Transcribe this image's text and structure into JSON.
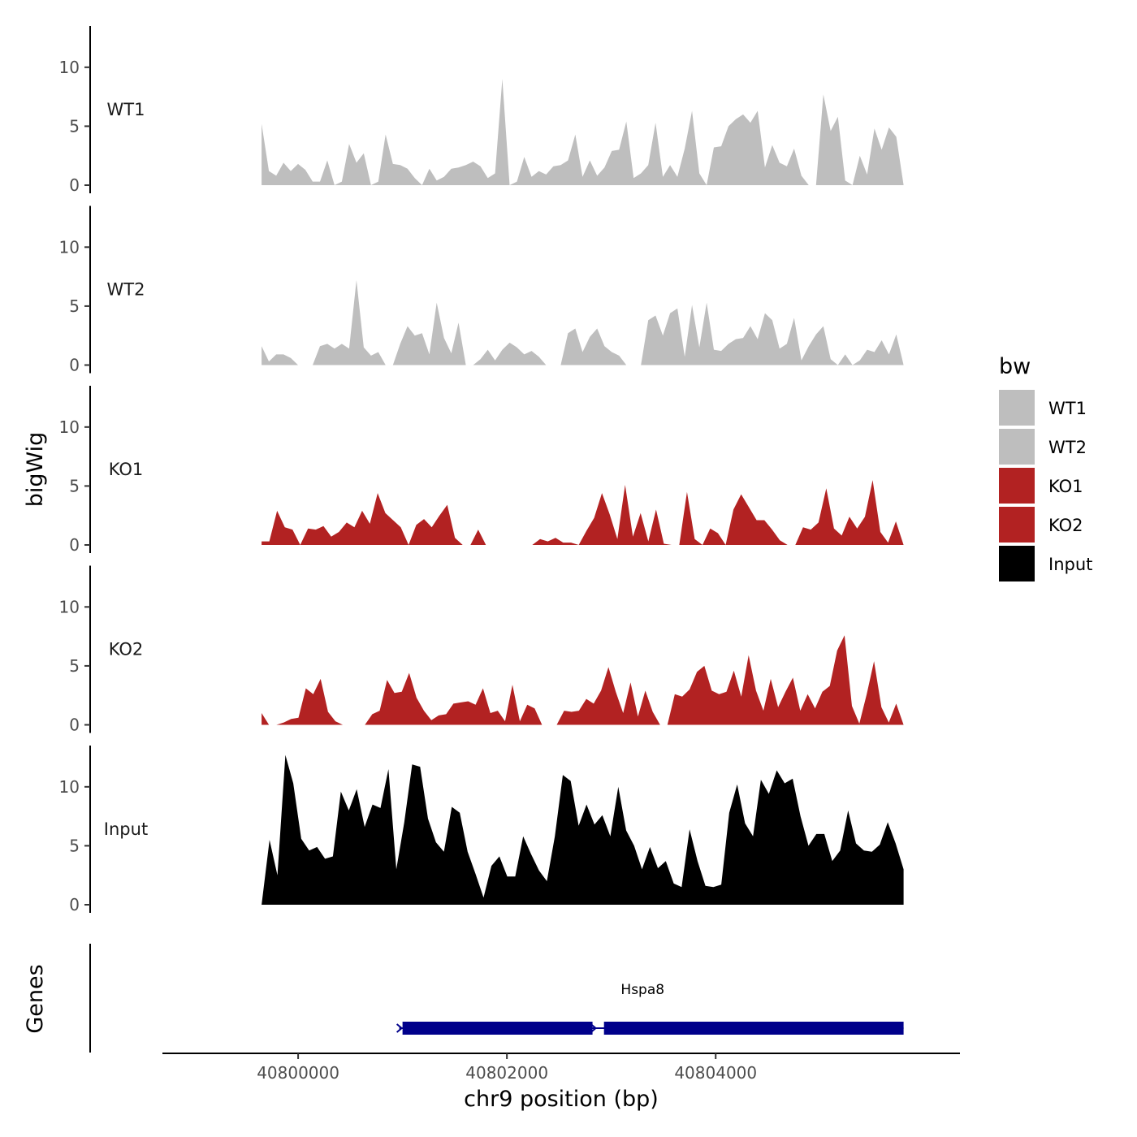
{
  "chart_data": {
    "type": "area",
    "ylabel": "bigWig",
    "genes_label": "Genes",
    "xlabel": "chr9 position (bp)",
    "x_ticks": [
      40800000,
      40802000,
      40804000
    ],
    "xlim": [
      40798700,
      40806340
    ],
    "data_x_range": [
      40799650,
      40805800
    ],
    "ylim": [
      0,
      13.5
    ],
    "y_ticks": [
      0,
      5,
      10
    ],
    "y_tick_labels": [
      "0",
      "5",
      "10"
    ],
    "legend": {
      "title": "bw",
      "entries": [
        {
          "label": "WT1",
          "color": "#bebebe"
        },
        {
          "label": "WT2",
          "color": "#bebebe"
        },
        {
          "label": "KO1",
          "color": "#b22222"
        },
        {
          "label": "KO2",
          "color": "#b22222"
        },
        {
          "label": "Input",
          "color": "#000000"
        }
      ]
    },
    "tracks": [
      {
        "name": "WT1",
        "color": "#bebebe",
        "values": [
          5.2,
          1.2,
          0.8,
          1.9,
          1.2,
          1.8,
          1.3,
          0.3,
          0.3,
          2.1,
          0,
          0.3,
          3.5,
          1.9,
          2.7,
          0,
          0.3,
          4.3,
          1.8,
          1.7,
          1.4,
          0.6,
          0,
          1.4,
          0.4,
          0.7,
          1.4,
          1.5,
          1.7,
          2.0,
          1.6,
          0.6,
          1.0,
          9.0,
          0,
          0.3,
          2.4,
          0.7,
          1.2,
          0.9,
          1.6,
          1.7,
          2.1,
          4.3,
          0.7,
          2.1,
          0.8,
          1.5,
          2.9,
          3.0,
          5.4,
          0.6,
          1.0,
          1.7,
          5.3,
          0.7,
          1.7,
          0.7,
          3.1,
          6.3,
          1.0,
          0,
          3.2,
          3.3,
          5.0,
          5.6,
          6.0,
          5.3,
          6.3,
          1.5,
          3.4,
          1.9,
          1.6,
          3.1,
          0.8,
          0,
          0,
          7.7,
          4.6,
          5.8,
          0.4,
          0,
          2.5,
          0.9,
          4.8,
          3.0,
          4.9,
          4.1,
          0
        ]
      },
      {
        "name": "WT2",
        "color": "#bebebe",
        "values": [
          1.6,
          0.3,
          0.9,
          0.9,
          0.6,
          0,
          0,
          0,
          1.6,
          1.8,
          1.4,
          1.8,
          1.4,
          7.2,
          1.5,
          0.8,
          1.1,
          0,
          0,
          1.8,
          3.3,
          2.5,
          2.7,
          0.9,
          5.3,
          2.3,
          1.0,
          3.6,
          0,
          0,
          0.5,
          1.3,
          0.4,
          1.3,
          1.9,
          1.5,
          0.9,
          1.2,
          0.7,
          0,
          0,
          0,
          2.7,
          3.1,
          1.1,
          2.4,
          3.1,
          1.6,
          1.1,
          0.8,
          0,
          0,
          0,
          3.8,
          4.2,
          2.5,
          4.4,
          4.8,
          0.7,
          5.1,
          1.5,
          5.3,
          1.3,
          1.2,
          1.8,
          2.2,
          2.3,
          3.3,
          2.2,
          4.4,
          3.8,
          1.4,
          1.8,
          4.0,
          0.4,
          1.6,
          2.6,
          3.3,
          0.5,
          0,
          0.9,
          0,
          0.4,
          1.3,
          1.1,
          2.1,
          0.9,
          2.6,
          0
        ]
      },
      {
        "name": "KO1",
        "color": "#b22222",
        "values": [
          0.3,
          0.3,
          2.9,
          1.5,
          1.3,
          0,
          1.4,
          1.3,
          1.6,
          0.7,
          1.1,
          1.9,
          1.5,
          2.9,
          1.8,
          4.4,
          2.7,
          2.1,
          1.5,
          0,
          1.7,
          2.2,
          1.5,
          2.5,
          3.4,
          0.6,
          0,
          0,
          1.3,
          0,
          0,
          0,
          0,
          0,
          0,
          0,
          0.5,
          0.3,
          0.6,
          0.2,
          0.2,
          0,
          1.2,
          2.3,
          4.4,
          2.6,
          0.5,
          5.1,
          0.7,
          2.7,
          0.3,
          3.0,
          0.1,
          0,
          0,
          4.5,
          0.5,
          0,
          1.4,
          1.0,
          0,
          3.0,
          4.3,
          3.2,
          2.1,
          2.1,
          1.3,
          0.4,
          0,
          0,
          1.5,
          1.3,
          1.9,
          4.8,
          1.4,
          0.8,
          2.4,
          1.4,
          2.4,
          5.5,
          1.1,
          0.2,
          2.0,
          0
        ]
      },
      {
        "name": "KO2",
        "color": "#b22222",
        "values": [
          1.0,
          0,
          0,
          0.2,
          0.5,
          0.6,
          3.1,
          2.6,
          3.9,
          1.1,
          0.3,
          0,
          0,
          0,
          0,
          0.9,
          1.2,
          3.8,
          2.7,
          2.8,
          4.4,
          2.3,
          1.2,
          0.4,
          0.8,
          0.9,
          1.8,
          1.9,
          2.0,
          1.7,
          3.1,
          1.0,
          1.2,
          0.3,
          3.4,
          0.3,
          1.7,
          1.4,
          0,
          0,
          0,
          1.2,
          1.1,
          1.2,
          2.2,
          1.8,
          2.9,
          4.9,
          2.8,
          1.0,
          3.6,
          0.7,
          2.9,
          1.1,
          0,
          0,
          2.6,
          2.4,
          3.0,
          4.5,
          5.0,
          2.9,
          2.6,
          2.8,
          4.6,
          2.4,
          5.9,
          2.9,
          1.2,
          3.9,
          1.5,
          2.8,
          4.0,
          1.2,
          2.6,
          1.4,
          2.8,
          3.3,
          6.3,
          7.6,
          1.6,
          0.1,
          2.6,
          5.4,
          1.5,
          0.2,
          1.8,
          0
        ]
      },
      {
        "name": "Input",
        "color": "#000000",
        "values": [
          0,
          5.5,
          2.5,
          12.7,
          10.3,
          5.6,
          4.6,
          4.9,
          3.9,
          4.1,
          9.6,
          8.0,
          9.8,
          6.6,
          8.5,
          8.2,
          11.5,
          3.0,
          7.0,
          11.9,
          11.7,
          7.3,
          5.3,
          4.5,
          8.3,
          7.8,
          4.5,
          2.6,
          0.6,
          3.3,
          4.1,
          2.4,
          2.4,
          5.8,
          4.3,
          2.9,
          2.0,
          5.8,
          11.0,
          10.5,
          6.7,
          8.5,
          6.8,
          7.6,
          5.8,
          10.0,
          6.3,
          5.0,
          3.0,
          4.9,
          3.1,
          3.7,
          1.8,
          1.5,
          6.4,
          3.7,
          1.6,
          1.5,
          1.7,
          7.8,
          10.2,
          6.9,
          5.8,
          10.6,
          9.4,
          11.4,
          10.3,
          10.7,
          7.5,
          5.0,
          6.0,
          6.0,
          3.7,
          4.6,
          8.0,
          5.2,
          4.6,
          4.5,
          5.1,
          7.0,
          5.2,
          3.0
        ]
      }
    ],
    "gene": {
      "name": "Hspa8",
      "start": 40801000,
      "end": 40805800,
      "segments": [
        [
          40801000,
          40802820
        ],
        [
          40802930,
          40805800
        ]
      ],
      "color": "#00008b"
    }
  }
}
